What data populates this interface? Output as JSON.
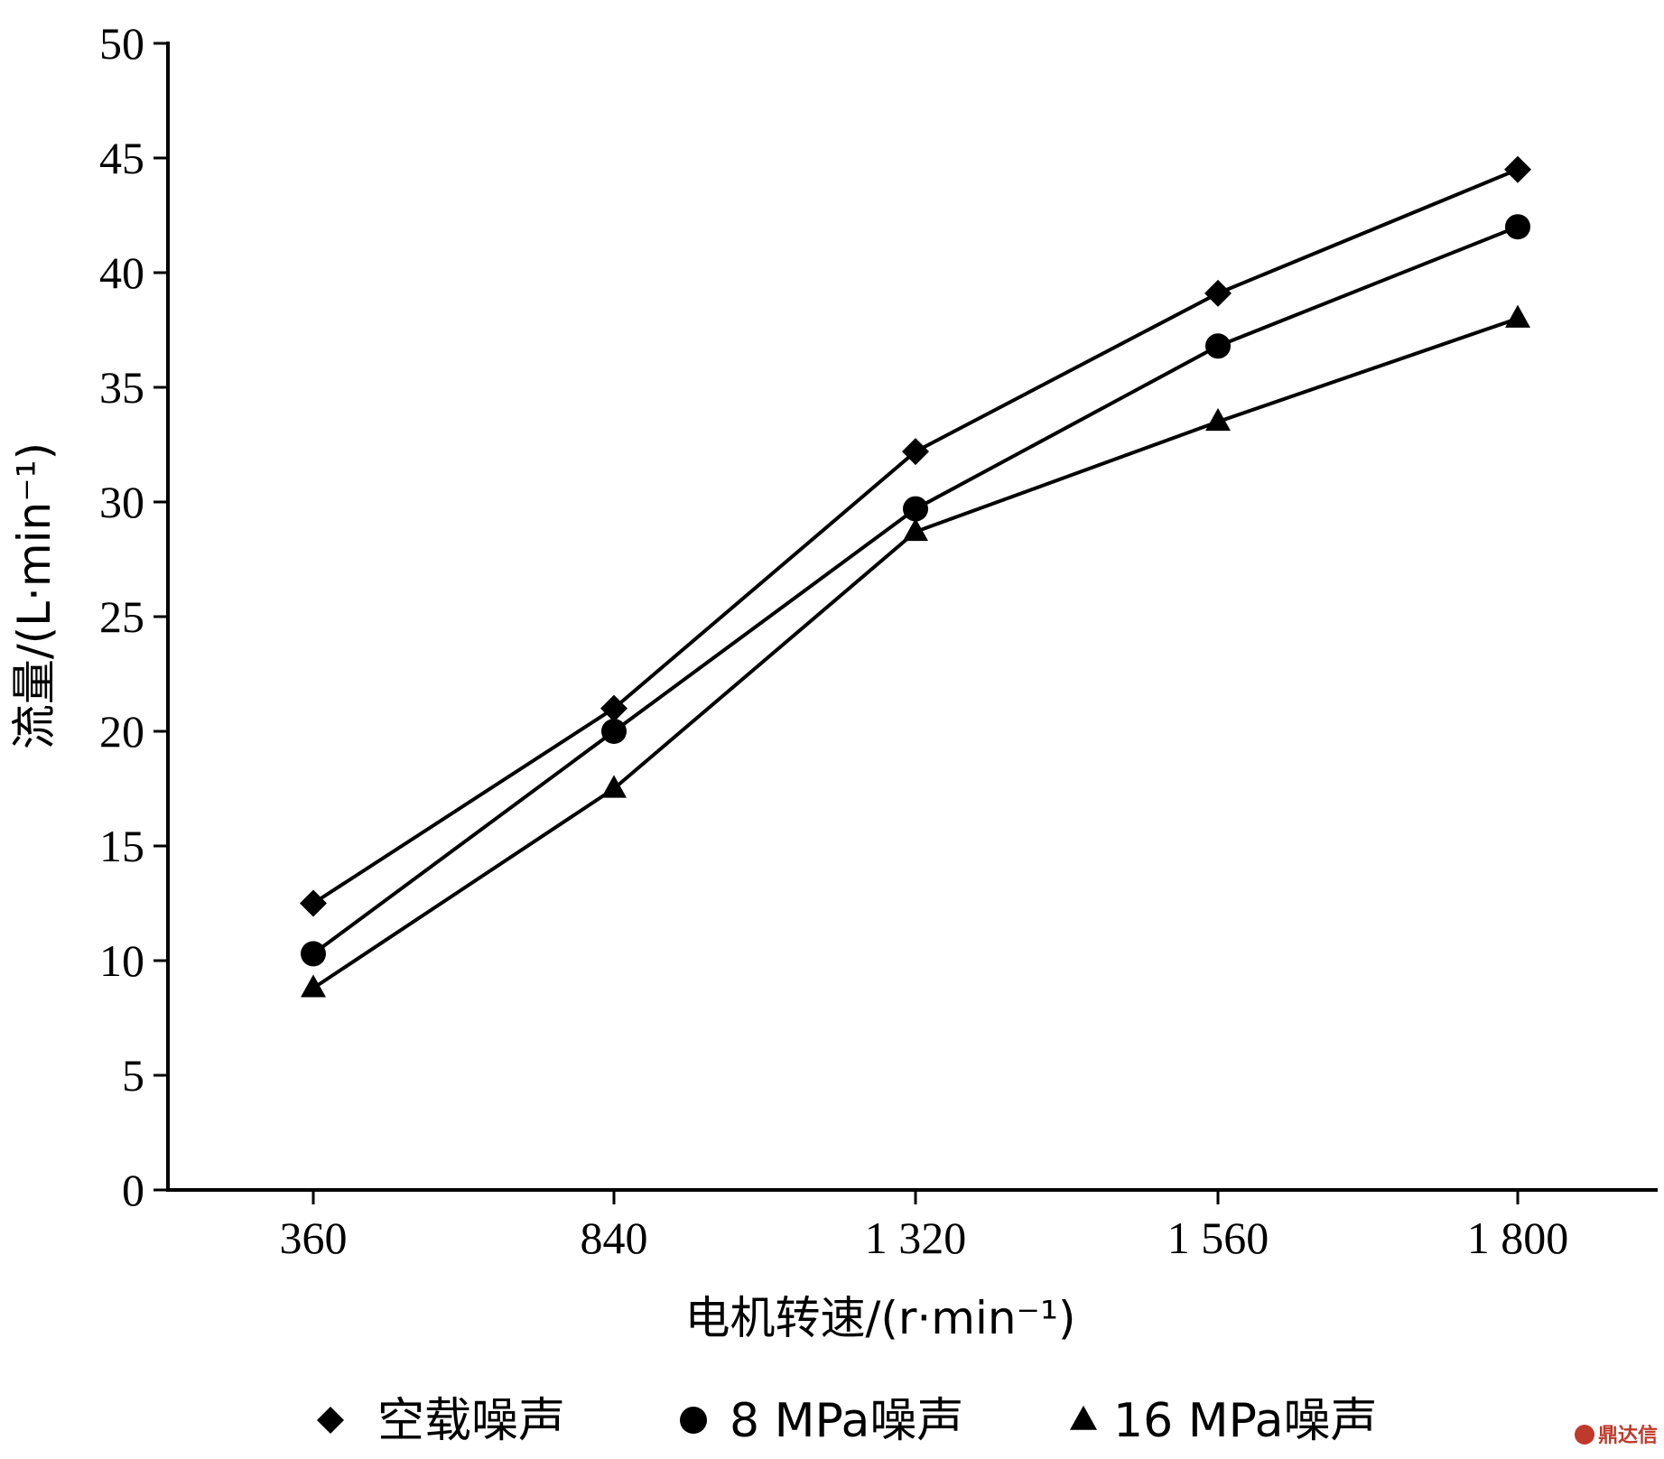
{
  "chart_data": {
    "type": "line",
    "title": "",
    "xlabel": "电机转速/(r·min⁻¹)",
    "ylabel": "流量/(L·min⁻¹)",
    "categories": [
      "360",
      "840",
      "1 320",
      "1 560",
      "1 800"
    ],
    "ylim": [
      0,
      50
    ],
    "yticks": [
      0,
      5,
      10,
      15,
      20,
      25,
      30,
      35,
      40,
      45,
      50
    ],
    "grid": false,
    "legend_position": "bottom",
    "series": [
      {
        "name": "空载噪声",
        "marker": "diamond",
        "values": [
          12.5,
          21.0,
          32.2,
          39.1,
          44.5
        ]
      },
      {
        "name": "8 MPa噪声",
        "marker": "circle",
        "values": [
          10.3,
          20.0,
          29.7,
          36.8,
          42.0
        ]
      },
      {
        "name": "16 MPa噪声",
        "marker": "triangle",
        "values": [
          8.8,
          17.5,
          28.7,
          33.5,
          38.0
        ]
      }
    ],
    "colors": {
      "line": "#000000",
      "watermark": "#c0392b"
    }
  },
  "watermark": {
    "text": "鼎达信"
  }
}
